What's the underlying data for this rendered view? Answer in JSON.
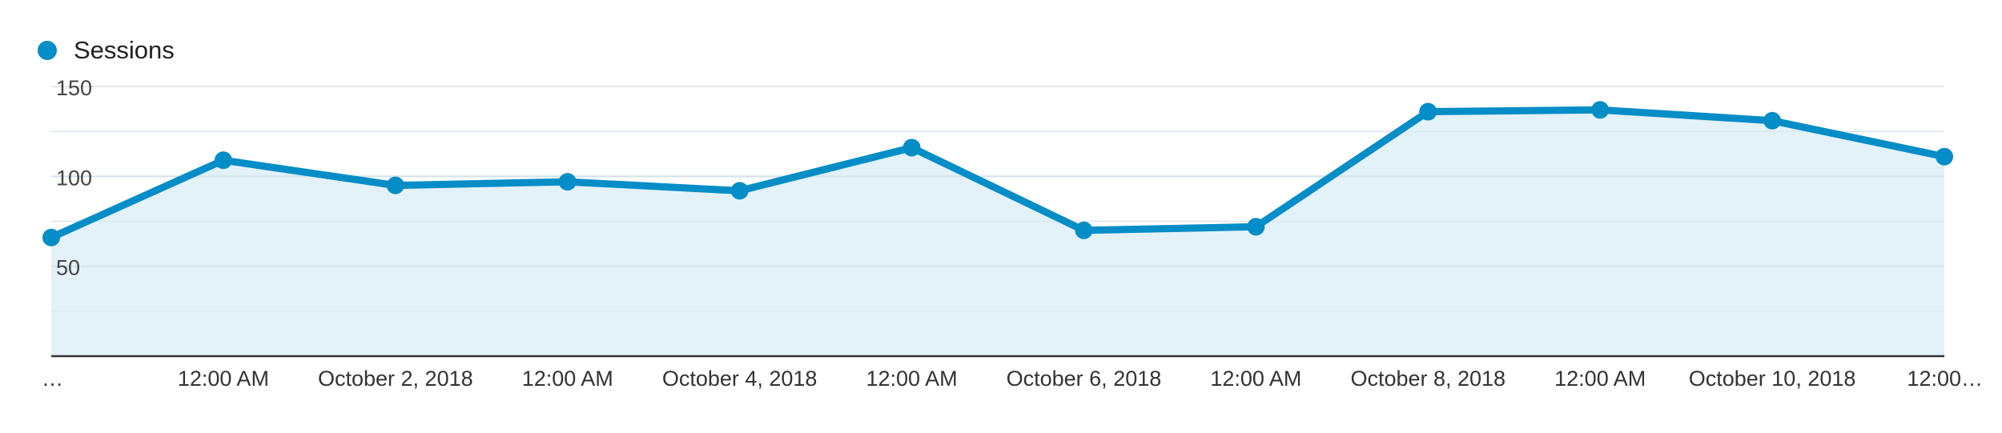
{
  "chart_data": {
    "type": "area",
    "legend": {
      "position": "top-left",
      "entries": [
        {
          "label": "Sessions",
          "color": "#058dc7"
        }
      ]
    },
    "x_tick_labels": [
      "…",
      "12:00 AM",
      "October 2, 2018",
      "12:00 AM",
      "October 4, 2018",
      "12:00 AM",
      "October 6, 2018",
      "12:00 AM",
      "October 8, 2018",
      "12:00 AM",
      "October 10, 2018",
      "12:00…"
    ],
    "y_tick_labels": [
      "150",
      "100",
      "50"
    ],
    "y_ticks": [
      150,
      100,
      50
    ],
    "ylim": [
      0,
      150
    ],
    "grid": true,
    "series": [
      {
        "name": "Sessions",
        "color": "#058dc7",
        "fill": "#e3f1f9",
        "values": [
          66,
          109,
          95,
          97,
          92,
          116,
          70,
          72,
          136,
          137,
          131,
          111
        ]
      }
    ]
  }
}
